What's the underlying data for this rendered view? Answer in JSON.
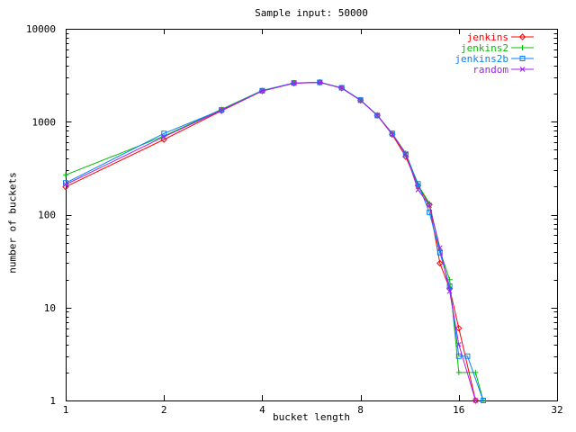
{
  "page": {
    "background": "#ffffff",
    "text_color": "#000000"
  },
  "chart_data": {
    "type": "line",
    "title": "Sample input: 50000",
    "xlabel": "bucket length",
    "ylabel": "number of buckets",
    "x_scale": "log2",
    "y_scale": "log10",
    "xlim": [
      1,
      32
    ],
    "ylim": [
      1,
      10000
    ],
    "x_ticks": [
      1,
      2,
      4,
      8,
      16,
      32
    ],
    "y_ticks": [
      1,
      10,
      100,
      1000,
      10000
    ],
    "y_minor_ticks": true,
    "grid": false,
    "legend_position": "top-right-inside",
    "series": [
      {
        "name": "jenkins",
        "color": "#ff0000",
        "marker": "diamond",
        "points": [
          [
            1,
            199
          ],
          [
            2,
            644
          ],
          [
            3,
            1310
          ],
          [
            4,
            2140
          ],
          [
            5,
            2600
          ],
          [
            6,
            2650
          ],
          [
            7,
            2300
          ],
          [
            8,
            1700
          ],
          [
            9,
            1170
          ],
          [
            10,
            730
          ],
          [
            11,
            420
          ],
          [
            12,
            205
          ],
          [
            13,
            128
          ],
          [
            14,
            30
          ],
          [
            15,
            16
          ],
          [
            16,
            6
          ],
          [
            18,
            1
          ]
        ]
      },
      {
        "name": "jenkins2",
        "color": "#00c000",
        "marker": "plus",
        "points": [
          [
            1,
            268
          ],
          [
            2,
            700
          ],
          [
            3,
            1360
          ],
          [
            4,
            2170
          ],
          [
            5,
            2610
          ],
          [
            6,
            2660
          ],
          [
            7,
            2310
          ],
          [
            8,
            1710
          ],
          [
            9,
            1180
          ],
          [
            10,
            745
          ],
          [
            11,
            460
          ],
          [
            12,
            210
          ],
          [
            13,
            132
          ],
          [
            14,
            41
          ],
          [
            15,
            20
          ],
          [
            16,
            2
          ],
          [
            18,
            2
          ],
          [
            19,
            1
          ]
        ]
      },
      {
        "name": "jenkins2b",
        "color": "#0080ff",
        "marker": "square",
        "points": [
          [
            1,
            219
          ],
          [
            2,
            747
          ],
          [
            3,
            1340
          ],
          [
            4,
            2160
          ],
          [
            5,
            2620
          ],
          [
            6,
            2655
          ],
          [
            7,
            2320
          ],
          [
            8,
            1715
          ],
          [
            9,
            1165
          ],
          [
            10,
            750
          ],
          [
            11,
            445
          ],
          [
            12,
            215
          ],
          [
            13,
            106
          ],
          [
            14,
            39
          ],
          [
            15,
            17
          ],
          [
            16,
            3
          ],
          [
            17,
            3
          ],
          [
            19,
            1
          ]
        ]
      },
      {
        "name": "random",
        "color": "#a020f0",
        "marker": "x",
        "points": [
          [
            1,
            211
          ],
          [
            2,
            690
          ],
          [
            3,
            1330
          ],
          [
            4,
            2140
          ],
          [
            5,
            2595
          ],
          [
            6,
            2645
          ],
          [
            7,
            2305
          ],
          [
            8,
            1695
          ],
          [
            9,
            1175
          ],
          [
            10,
            735
          ],
          [
            11,
            455
          ],
          [
            12,
            185
          ],
          [
            13,
            126
          ],
          [
            14,
            44
          ],
          [
            15,
            15
          ],
          [
            16,
            4
          ],
          [
            18,
            1
          ]
        ]
      }
    ]
  }
}
